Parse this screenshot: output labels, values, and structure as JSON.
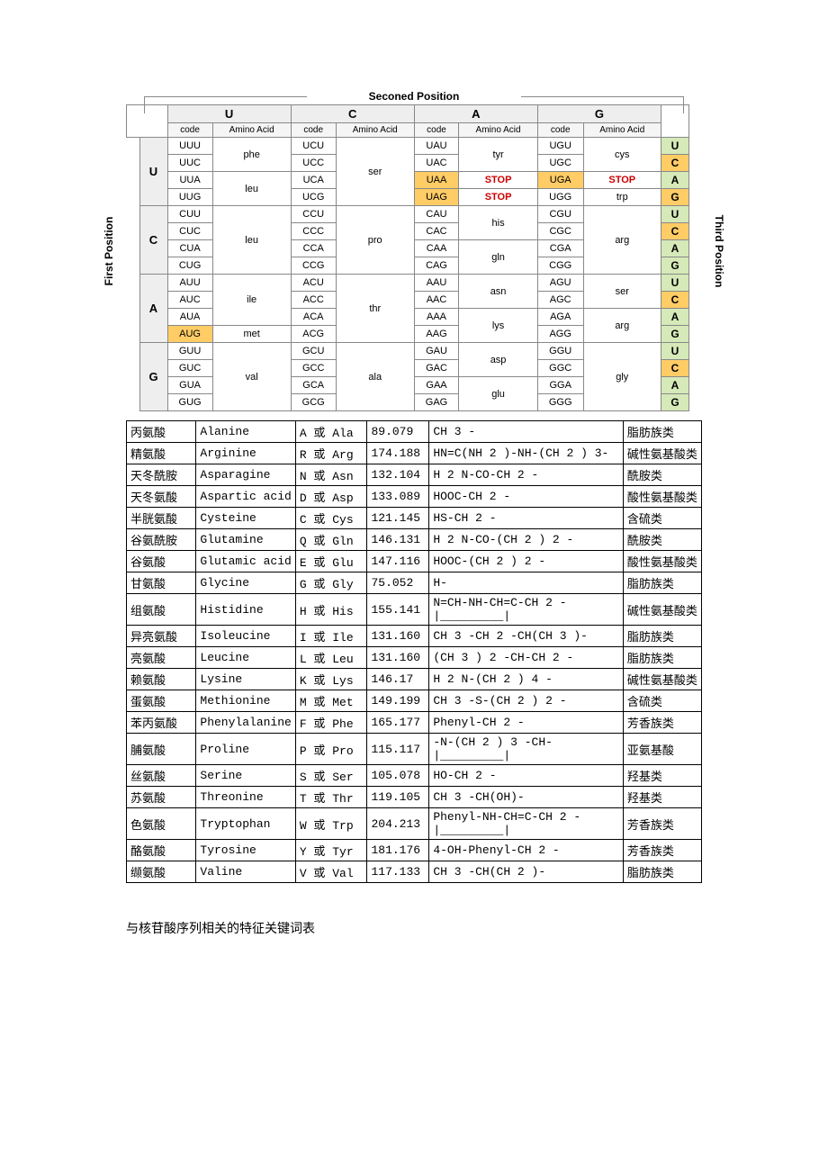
{
  "labels": {
    "first": "First Position",
    "second": "Seconed Position",
    "third": "Third Position",
    "code": "code",
    "aa": "Amino Acid"
  },
  "bases": [
    "U",
    "C",
    "A",
    "G"
  ],
  "colors": {
    "orange": "#ffcc66",
    "green": "#d6e9b8",
    "stop": "#cc0000",
    "header_bg": "#eeeeee"
  },
  "codon": {
    "U": {
      "U": {
        "codes": [
          "UUU",
          "UUC",
          "UUA",
          "UUG"
        ],
        "aas": [
          {
            "t": "phe",
            "span": 2
          },
          {
            "t": "leu",
            "span": 2
          }
        ]
      },
      "C": {
        "codes": [
          "UCU",
          "UCC",
          "UCA",
          "UCG"
        ],
        "aas": [
          {
            "t": "ser",
            "span": 4
          }
        ]
      },
      "A": {
        "codes": [
          "UAU",
          "UAC",
          "UAA",
          "UAG"
        ],
        "aas": [
          {
            "t": "tyr",
            "span": 2
          },
          {
            "t": "STOP",
            "span": 1,
            "stop": true
          },
          {
            "t": "STOP",
            "span": 1,
            "stop": true
          }
        ],
        "hl": [
          2,
          3
        ]
      },
      "G": {
        "codes": [
          "UGU",
          "UGC",
          "UGA",
          "UGG"
        ],
        "aas": [
          {
            "t": "cys",
            "span": 2
          },
          {
            "t": "STOP",
            "span": 1,
            "stop": true
          },
          {
            "t": "trp",
            "span": 1
          }
        ],
        "hl": [
          2
        ]
      }
    },
    "C": {
      "U": {
        "codes": [
          "CUU",
          "CUC",
          "CUA",
          "CUG"
        ],
        "aas": [
          {
            "t": "leu",
            "span": 4
          }
        ]
      },
      "C": {
        "codes": [
          "CCU",
          "CCC",
          "CCA",
          "CCG"
        ],
        "aas": [
          {
            "t": "pro",
            "span": 4
          }
        ]
      },
      "A": {
        "codes": [
          "CAU",
          "CAC",
          "CAA",
          "CAG"
        ],
        "aas": [
          {
            "t": "his",
            "span": 2
          },
          {
            "t": "gln",
            "span": 2
          }
        ]
      },
      "G": {
        "codes": [
          "CGU",
          "CGC",
          "CGA",
          "CGG"
        ],
        "aas": [
          {
            "t": "arg",
            "span": 4
          }
        ]
      }
    },
    "A": {
      "U": {
        "codes": [
          "AUU",
          "AUC",
          "AUA",
          "AUG"
        ],
        "aas": [
          {
            "t": "ile",
            "span": 3
          },
          {
            "t": "met",
            "span": 1
          }
        ],
        "hl": [
          3
        ]
      },
      "C": {
        "codes": [
          "ACU",
          "ACC",
          "ACA",
          "ACG"
        ],
        "aas": [
          {
            "t": "thr",
            "span": 4
          }
        ]
      },
      "A": {
        "codes": [
          "AAU",
          "AAC",
          "AAA",
          "AAG"
        ],
        "aas": [
          {
            "t": "asn",
            "span": 2
          },
          {
            "t": "lys",
            "span": 2
          }
        ]
      },
      "G": {
        "codes": [
          "AGU",
          "AGC",
          "AGA",
          "AGG"
        ],
        "aas": [
          {
            "t": "ser",
            "span": 2
          },
          {
            "t": "arg",
            "span": 2
          }
        ]
      }
    },
    "G": {
      "U": {
        "codes": [
          "GUU",
          "GUC",
          "GUA",
          "GUG"
        ],
        "aas": [
          {
            "t": "val",
            "span": 4
          }
        ]
      },
      "C": {
        "codes": [
          "GCU",
          "GCC",
          "GCA",
          "GCG"
        ],
        "aas": [
          {
            "t": "ala",
            "span": 4
          }
        ]
      },
      "A": {
        "codes": [
          "GAU",
          "GAC",
          "GAA",
          "GAG"
        ],
        "aas": [
          {
            "t": "asp",
            "span": 2
          },
          {
            "t": "glu",
            "span": 2
          }
        ]
      },
      "G": {
        "codes": [
          "GGU",
          "GGC",
          "GGA",
          "GGG"
        ],
        "aas": [
          {
            "t": "gly",
            "span": 4
          }
        ]
      }
    }
  },
  "third_colors": [
    "green",
    "orange",
    "green",
    "orange",
    "green",
    "orange",
    "green",
    "green",
    "green",
    "orange",
    "green",
    "green",
    "green",
    "orange",
    "green",
    "green"
  ],
  "amino_table": [
    [
      "丙氨酸",
      "Alanine",
      "A 或 Ala",
      "89.079",
      "CH 3 -",
      "脂肪族类"
    ],
    [
      "精氨酸",
      "Arginine",
      "R 或 Arg",
      "174.188",
      "HN=C(NH 2 )-NH-(CH 2 ) 3-",
      "碱性氨基酸类"
    ],
    [
      "天冬酰胺",
      "Asparagine",
      "N 或 Asn",
      "132.104",
      "H 2 N-CO-CH 2 -",
      "酰胺类"
    ],
    [
      "天冬氨酸",
      "Aspartic acid",
      "D 或 Asp",
      "133.089",
      "HOOC-CH 2 -",
      "酸性氨基酸类"
    ],
    [
      "半胱氨酸",
      "Cysteine",
      "C 或 Cys",
      "121.145",
      "HS-CH 2 -",
      "含硫类"
    ],
    [
      "谷氨酰胺",
      "Glutamine",
      "Q 或 Gln",
      "146.131",
      "H 2 N-CO-(CH 2 ) 2 -",
      "酰胺类"
    ],
    [
      "谷氨酸",
      "Glutamic acid",
      "E 或 Glu",
      "147.116",
      "HOOC-(CH 2 ) 2 -",
      "酸性氨基酸类"
    ],
    [
      "甘氨酸",
      "Glycine",
      "G 或 Gly",
      "75.052",
      "H-",
      "脂肪族类"
    ],
    [
      "组氨酸",
      "Histidine",
      "H 或 His",
      "155.141",
      "N=CH-NH-CH=C-CH 2 - |_________|",
      "碱性氨基酸类"
    ],
    [
      "异亮氨酸",
      "Isoleucine",
      "I 或 Ile",
      "131.160",
      "CH 3 -CH 2 -CH(CH 3 )-",
      "脂肪族类"
    ],
    [
      "亮氨酸",
      "Leucine",
      "L 或 Leu",
      "131.160",
      "(CH 3 ) 2 -CH-CH 2 -",
      "脂肪族类"
    ],
    [
      "赖氨酸",
      "Lysine",
      "K 或 Lys",
      "146.17",
      "H 2 N-(CH 2 ) 4 -",
      "碱性氨基酸类"
    ],
    [
      "蛋氨酸",
      "Methionine",
      "M 或 Met",
      "149.199",
      "CH 3 -S-(CH 2 ) 2 -",
      "含硫类"
    ],
    [
      "苯丙氨酸",
      "Phenylalanine",
      "F 或 Phe",
      "165.177",
      "Phenyl-CH 2 -",
      "芳香族类"
    ],
    [
      "脯氨酸",
      "Proline",
      "P 或 Pro",
      "115.117",
      "-N-(CH 2 ) 3 -CH- |_________|",
      "亚氨基酸"
    ],
    [
      "丝氨酸",
      "Serine",
      "S 或 Ser",
      "105.078",
      "HO-CH 2 -",
      "羟基类"
    ],
    [
      "苏氨酸",
      "Threonine",
      "T 或 Thr",
      "119.105",
      "CH 3 -CH(OH)-",
      "羟基类"
    ],
    [
      "色氨酸",
      "Tryptophan",
      "W 或 Trp",
      "204.213",
      "Phenyl-NH-CH=C-CH 2 - |_________|",
      "芳香族类"
    ],
    [
      "酪氨酸",
      "Tyrosine",
      "Y 或 Tyr",
      "181.176",
      "4-OH-Phenyl-CH 2 -",
      "芳香族类"
    ],
    [
      "缬氨酸",
      "Valine",
      "V 或 Val",
      "117.133",
      "CH 3 -CH(CH 2 )-",
      "脂肪族类"
    ]
  ],
  "footer": "与核苷酸序列相关的特征关键词表"
}
